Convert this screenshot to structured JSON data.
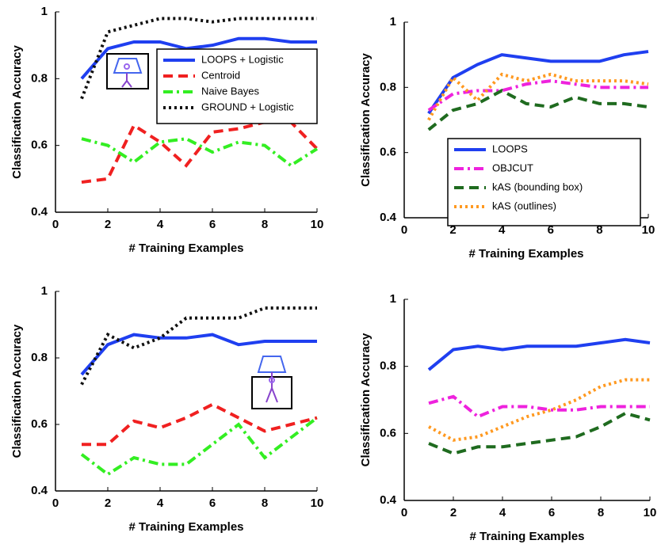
{
  "chart_data": [
    {
      "type": "line",
      "xlabel": "# Training Examples",
      "ylabel": "Classification Accuracy",
      "x": [
        1,
        2,
        3,
        4,
        5,
        6,
        7,
        8,
        9,
        10
      ],
      "xlim": [
        0,
        10
      ],
      "xticks": [
        0,
        2,
        4,
        6,
        8,
        10
      ],
      "ylim": [
        0.4,
        1
      ],
      "yticks": [
        0.4,
        0.6,
        0.8,
        1
      ],
      "legend": "upper right",
      "series": [
        {
          "name": "LOOPS + Logistic",
          "color": "#1f3ff0",
          "style": "solid",
          "values": [
            0.8,
            0.89,
            0.91,
            0.91,
            0.89,
            0.9,
            0.92,
            0.92,
            0.91,
            0.91
          ]
        },
        {
          "name": "Centroid",
          "color": "#f02020",
          "style": "dashed",
          "values": [
            0.49,
            0.5,
            0.66,
            0.61,
            0.54,
            0.64,
            0.65,
            0.67,
            0.67,
            0.59
          ]
        },
        {
          "name": "Naive Bayes",
          "color": "#33ee22",
          "style": "dashdot",
          "values": [
            0.62,
            0.6,
            0.55,
            0.61,
            0.62,
            0.58,
            0.61,
            0.6,
            0.54,
            0.59
          ]
        },
        {
          "name": "GROUND + Logistic",
          "color": "#111111",
          "style": "dotted",
          "values": [
            0.74,
            0.94,
            0.96,
            0.98,
            0.98,
            0.97,
            0.98,
            0.98,
            0.98,
            0.98
          ]
        }
      ]
    },
    {
      "type": "line",
      "xlabel": "# Training Examples",
      "ylabel": "Classification Accuracy",
      "x": [
        1,
        2,
        3,
        4,
        5,
        6,
        7,
        8,
        9,
        10
      ],
      "xlim": [
        0,
        10
      ],
      "xticks": [
        0,
        2,
        4,
        6,
        8,
        10
      ],
      "ylim": [
        0.4,
        1
      ],
      "yticks": [
        0.4,
        0.6,
        0.8,
        1
      ],
      "legend": "lower right",
      "series": [
        {
          "name": "LOOPS",
          "color": "#1f3ff0",
          "style": "solid",
          "values": [
            0.72,
            0.83,
            0.87,
            0.9,
            0.89,
            0.88,
            0.88,
            0.88,
            0.9,
            0.91
          ]
        },
        {
          "name": "OBJCUT",
          "color": "#ee22dd",
          "style": "dashdot",
          "values": [
            0.73,
            0.78,
            0.79,
            0.79,
            0.81,
            0.82,
            0.81,
            0.8,
            0.8,
            0.8
          ]
        },
        {
          "name": "kAS (bounding box)",
          "color": "#1f6b1f",
          "style": "dashed",
          "values": [
            0.67,
            0.73,
            0.75,
            0.79,
            0.75,
            0.74,
            0.77,
            0.75,
            0.75,
            0.74
          ]
        },
        {
          "name": "kAS (outlines)",
          "color": "#ff9920",
          "style": "dotted",
          "values": [
            0.7,
            0.83,
            0.76,
            0.84,
            0.82,
            0.84,
            0.82,
            0.82,
            0.82,
            0.81
          ]
        }
      ]
    },
    {
      "type": "line",
      "xlabel": "# Training Examples",
      "ylabel": "Classification Accuracy",
      "x": [
        1,
        2,
        3,
        4,
        5,
        6,
        7,
        8,
        9,
        10
      ],
      "xlim": [
        0,
        10
      ],
      "xticks": [
        0,
        2,
        4,
        6,
        8,
        10
      ],
      "ylim": [
        0.4,
        1
      ],
      "yticks": [
        0.4,
        0.6,
        0.8,
        1
      ],
      "series": [
        {
          "color": "#1f3ff0",
          "style": "solid",
          "values": [
            0.75,
            0.84,
            0.87,
            0.86,
            0.86,
            0.87,
            0.84,
            0.85,
            0.85,
            0.85
          ]
        },
        {
          "color": "#f02020",
          "style": "dashed",
          "values": [
            0.54,
            0.54,
            0.61,
            0.59,
            0.62,
            0.66,
            0.62,
            0.58,
            0.6,
            0.62
          ]
        },
        {
          "color": "#33ee22",
          "style": "dashdot",
          "values": [
            0.51,
            0.45,
            0.5,
            0.48,
            0.48,
            0.54,
            0.6,
            0.5,
            0.56,
            0.62
          ]
        },
        {
          "color": "#111111",
          "style": "dotted",
          "values": [
            0.72,
            0.87,
            0.83,
            0.86,
            0.92,
            0.92,
            0.92,
            0.95,
            0.95,
            0.95
          ]
        }
      ]
    },
    {
      "type": "line",
      "xlabel": "# Training Examples",
      "ylabel": "Classification Accuracy",
      "x": [
        1,
        2,
        3,
        4,
        5,
        6,
        7,
        8,
        9,
        10
      ],
      "xlim": [
        0,
        10
      ],
      "xticks": [
        0,
        2,
        4,
        6,
        8,
        10
      ],
      "ylim": [
        0.4,
        1
      ],
      "yticks": [
        0.4,
        0.6,
        0.8,
        1
      ],
      "series": [
        {
          "color": "#1f3ff0",
          "style": "solid",
          "values": [
            0.79,
            0.85,
            0.86,
            0.85,
            0.86,
            0.86,
            0.86,
            0.87,
            0.88,
            0.87
          ]
        },
        {
          "color": "#ee22dd",
          "style": "dashdot",
          "values": [
            0.69,
            0.71,
            0.65,
            0.68,
            0.68,
            0.67,
            0.67,
            0.68,
            0.68,
            0.68
          ]
        },
        {
          "color": "#1f6b1f",
          "style": "dashed",
          "values": [
            0.57,
            0.54,
            0.56,
            0.56,
            0.57,
            0.58,
            0.59,
            0.62,
            0.66,
            0.64
          ]
        },
        {
          "color": "#ff9920",
          "style": "dotted",
          "values": [
            0.62,
            0.58,
            0.59,
            0.62,
            0.65,
            0.67,
            0.7,
            0.74,
            0.76,
            0.76
          ]
        }
      ]
    }
  ]
}
